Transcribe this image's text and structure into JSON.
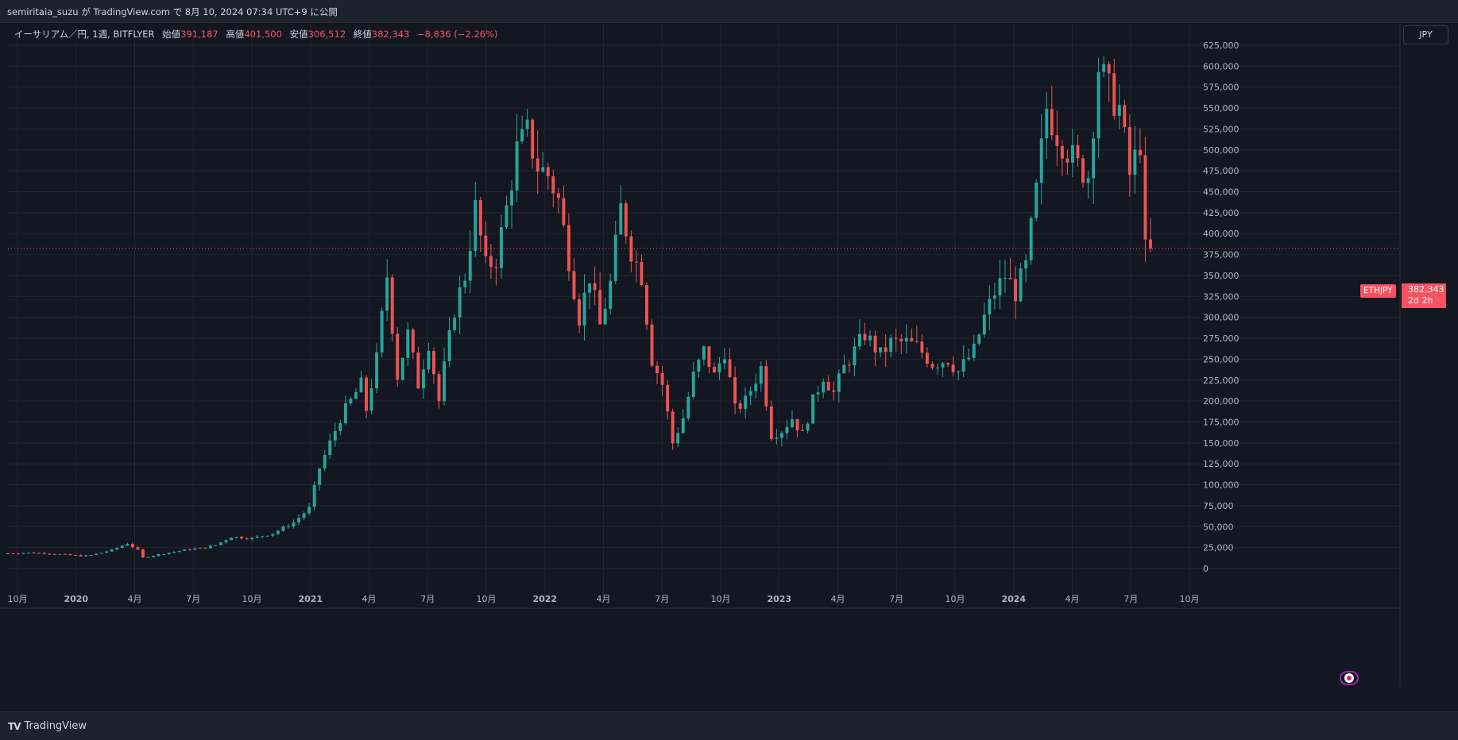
{
  "header": {
    "published_line": "semiritaia_suzu が TradingView.com で 8月 10, 2024 07:34 UTC+9 に公開"
  },
  "legend": {
    "symbol": "イーサリアム／円, 1週, BITFLYER",
    "open_label": "始値",
    "open": "391,187",
    "high_label": "高値",
    "high": "401,500",
    "low_label": "安値",
    "low": "306,512",
    "close_label": "終値",
    "close": "382,343",
    "change": "−8,836 (−2.26%)"
  },
  "currency_button": "JPY",
  "last_price": {
    "symbol": "ETHJPY",
    "price": "382,343",
    "countdown": "2d 2h",
    "value": 382343
  },
  "footer": {
    "brand": "TradingView"
  },
  "colors": {
    "up": "#26a69a",
    "down": "#ef5350",
    "background": "#131722",
    "grid": "#1f2430"
  },
  "chart_data": {
    "type": "candlestick",
    "interval": "1週",
    "ylim": [
      -20000,
      630000
    ],
    "y_ticks": [
      "625,000",
      "600,000",
      "575,000",
      "550,000",
      "525,000",
      "500,000",
      "475,000",
      "450,000",
      "425,000",
      "400,000",
      "375,000",
      "350,000",
      "325,000",
      "300,000",
      "275,000",
      "250,000",
      "225,000",
      "200,000",
      "175,000",
      "150,000",
      "125,000",
      "100,000",
      "75,000",
      "50,000",
      "25,000",
      "0"
    ],
    "x_ticks": [
      "10月",
      "2020",
      "4月",
      "7月",
      "10月",
      "2021",
      "4月",
      "7月",
      "10月",
      "2022",
      "4月",
      "7月",
      "10月",
      "2023",
      "4月",
      "7月",
      "10月",
      "2024",
      "4月",
      "7月",
      "10月"
    ],
    "close_series": [
      [
        0,
        18000
      ],
      [
        5,
        19000
      ],
      [
        10,
        17000
      ],
      [
        14,
        15000
      ],
      [
        16,
        16000
      ],
      [
        20,
        22000
      ],
      [
        23,
        30000
      ],
      [
        25,
        22000
      ],
      [
        26,
        13000
      ],
      [
        30,
        18000
      ],
      [
        35,
        23000
      ],
      [
        38,
        25000
      ],
      [
        40,
        28000
      ],
      [
        43,
        38000
      ],
      [
        47,
        36000
      ],
      [
        51,
        42000
      ],
      [
        55,
        55000
      ],
      [
        58,
        72000
      ],
      [
        60,
        120000
      ],
      [
        62,
        150000
      ],
      [
        64,
        180000
      ],
      [
        66,
        200000
      ],
      [
        68,
        220000
      ],
      [
        69,
        190000
      ],
      [
        71,
        250000
      ],
      [
        73,
        350000
      ],
      [
        75,
        230000
      ],
      [
        77,
        280000
      ],
      [
        79,
        220000
      ],
      [
        81,
        270000
      ],
      [
        83,
        200000
      ],
      [
        84,
        240000
      ],
      [
        86,
        310000
      ],
      [
        88,
        350000
      ],
      [
        90,
        430000
      ],
      [
        92,
        360000
      ],
      [
        94,
        370000
      ],
      [
        96,
        430000
      ],
      [
        98,
        500000
      ],
      [
        100,
        520000
      ],
      [
        102,
        480000
      ],
      [
        104,
        470000
      ],
      [
        106,
        440000
      ],
      [
        108,
        370000
      ],
      [
        110,
        300000
      ],
      [
        112,
        350000
      ],
      [
        114,
        290000
      ],
      [
        116,
        340000
      ],
      [
        118,
        430000
      ],
      [
        120,
        380000
      ],
      [
        122,
        350000
      ],
      [
        124,
        250000
      ],
      [
        126,
        220000
      ],
      [
        128,
        150000
      ],
      [
        130,
        180000
      ],
      [
        132,
        230000
      ],
      [
        134,
        260000
      ],
      [
        136,
        230000
      ],
      [
        138,
        260000
      ],
      [
        140,
        190000
      ],
      [
        142,
        200000
      ],
      [
        145,
        240000
      ],
      [
        147,
        160000
      ],
      [
        149,
        165000
      ],
      [
        151,
        180000
      ],
      [
        153,
        160000
      ],
      [
        155,
        200000
      ],
      [
        157,
        230000
      ],
      [
        159,
        210000
      ],
      [
        161,
        240000
      ],
      [
        163,
        260000
      ],
      [
        165,
        280000
      ],
      [
        168,
        255000
      ],
      [
        170,
        270000
      ],
      [
        173,
        270000
      ],
      [
        175,
        265000
      ],
      [
        178,
        245000
      ],
      [
        181,
        250000
      ],
      [
        183,
        235000
      ],
      [
        186,
        260000
      ],
      [
        188,
        300000
      ],
      [
        190,
        330000
      ],
      [
        192,
        350000
      ],
      [
        194,
        330000
      ],
      [
        196,
        360000
      ],
      [
        198,
        450000
      ],
      [
        200,
        550000
      ],
      [
        202,
        520000
      ],
      [
        204,
        500000
      ],
      [
        206,
        480000
      ],
      [
        208,
        470000
      ],
      [
        210,
        600000
      ],
      [
        212,
        570000
      ],
      [
        214,
        550000
      ],
      [
        216,
        470000
      ],
      [
        218,
        510000
      ],
      [
        219,
        380000
      ],
      [
        220,
        382343
      ]
    ]
  }
}
